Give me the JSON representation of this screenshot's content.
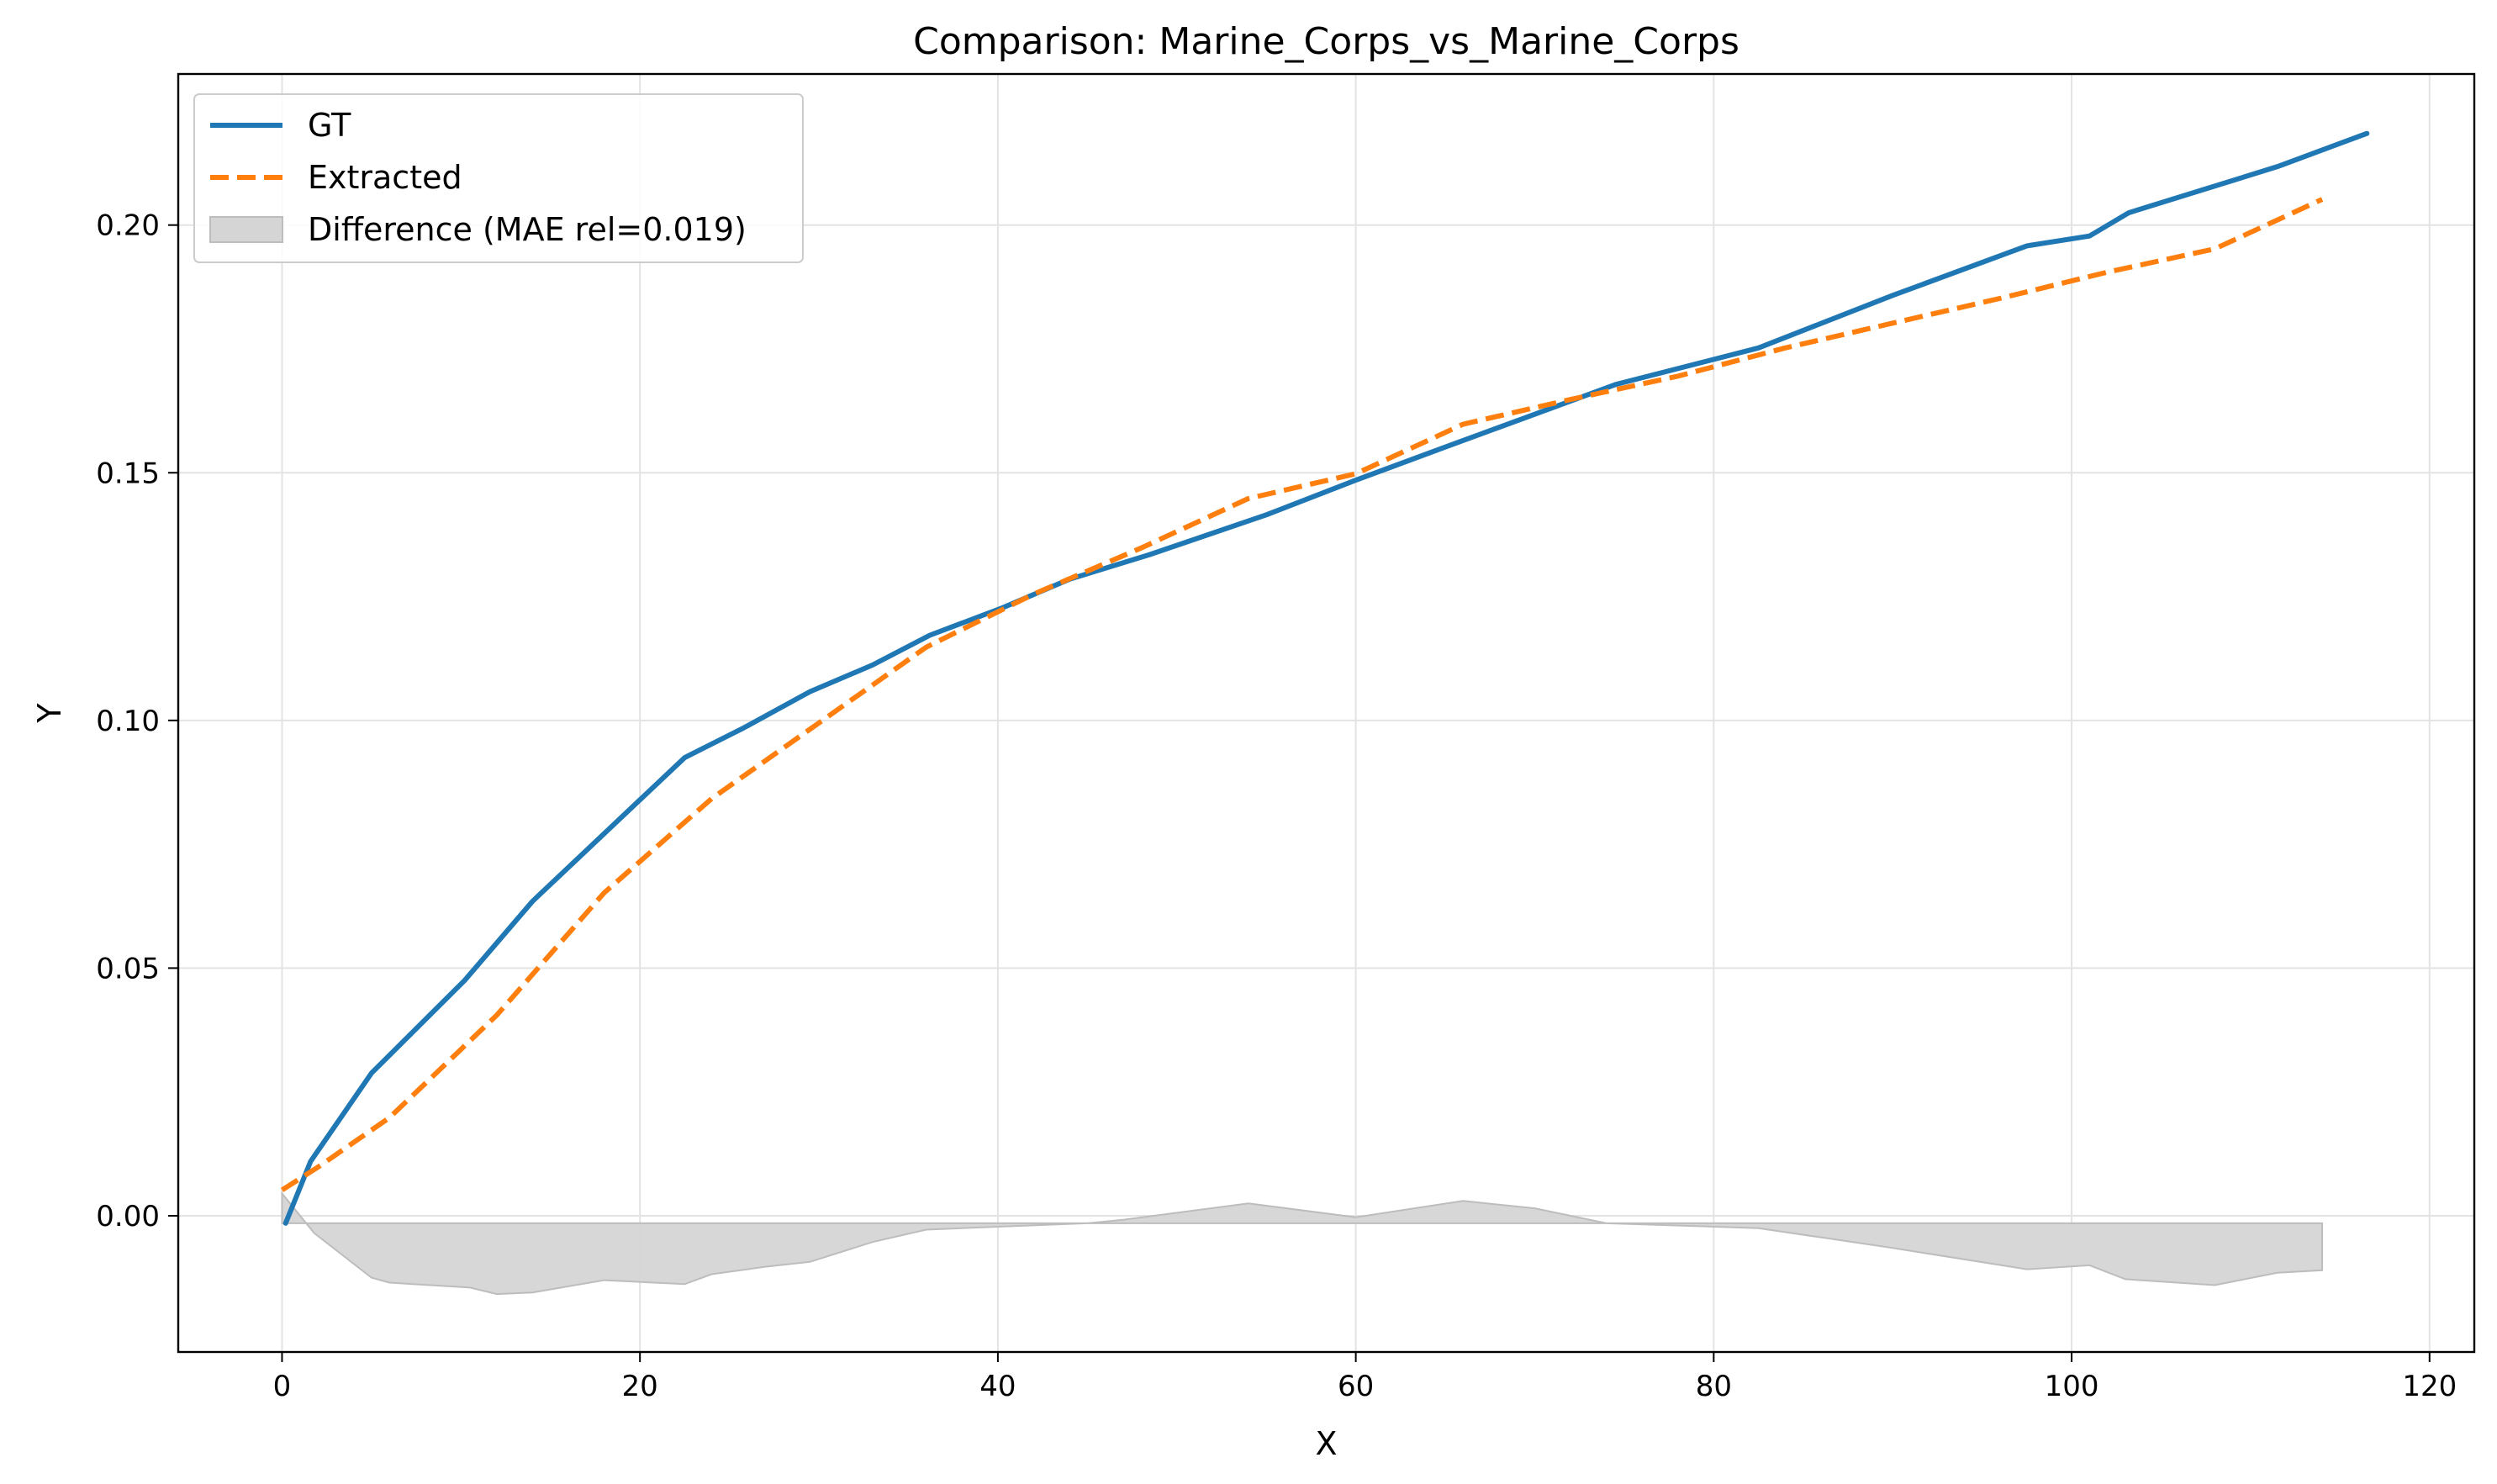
{
  "chart_data": {
    "type": "line",
    "title": "Comparison: Marine_Corps_vs_Marine_Corps",
    "xlabel": "X",
    "ylabel": "Y",
    "xlim": [
      -5.8,
      122.5
    ],
    "ylim": [
      -0.0275,
      0.2305
    ],
    "xticks": [
      0,
      20,
      40,
      60,
      80,
      100,
      120
    ],
    "yticks": [
      0.0,
      0.05,
      0.1,
      0.15,
      0.2
    ],
    "xtick_labels": [
      "0",
      "20",
      "40",
      "60",
      "80",
      "100",
      "120"
    ],
    "ytick_labels": [
      "0.00",
      "0.05",
      "0.10",
      "0.15",
      "0.20"
    ],
    "grid": true,
    "legend_position": "top-left",
    "series": [
      {
        "name": "GT",
        "style": "solid",
        "color": "#1f77b4",
        "x": [
          0.2,
          1.6,
          5.0,
          10.2,
          14.0,
          22.5,
          25.8,
          29.5,
          33.0,
          36.2,
          40.3,
          44.0,
          48.5,
          55.0,
          60.0,
          65.0,
          70.0,
          74.5,
          82.5,
          90.0,
          97.5,
          101.0,
          103.2,
          111.5,
          116.5
        ],
        "y": [
          -0.0015,
          0.011,
          0.0288,
          0.0475,
          0.0635,
          0.0925,
          0.0985,
          0.1058,
          0.1112,
          0.1172,
          0.1228,
          0.1285,
          0.1335,
          0.1415,
          0.1485,
          0.1552,
          0.1618,
          0.1678,
          0.1752,
          0.1858,
          0.1958,
          0.1978,
          0.2025,
          0.2118,
          0.2185
        ]
      },
      {
        "name": "Extracted",
        "style": "dashed",
        "color": "#ff7f0e",
        "x": [
          0.0,
          2.0,
          6.0,
          12.0,
          18.0,
          24.0,
          30.0,
          36.0,
          42.0,
          48.0,
          54.0,
          60.0,
          66.0,
          72.0,
          78.0,
          84.0,
          90.0,
          96.0,
          102.0,
          108.0,
          114.0
        ],
        "y": [
          0.0052,
          0.0098,
          0.0198,
          0.0405,
          0.0652,
          0.0842,
          0.0995,
          0.1148,
          0.1255,
          0.1348,
          0.1448,
          0.1498,
          0.1598,
          0.1648,
          0.1695,
          0.1752,
          0.1802,
          0.1852,
          0.1905,
          0.1952,
          0.2052
        ]
      }
    ],
    "difference": {
      "name": "Difference (MAE rel=0.019)",
      "color": "#d5d5d5",
      "baseline": -0.0015,
      "x": [
        0.0,
        1.8,
        5.0,
        6.0,
        10.5,
        12.0,
        14.0,
        18.0,
        22.5,
        24.0,
        27.0,
        29.5,
        33.0,
        36.0,
        40.0,
        45.0,
        47.0,
        54.0,
        60.0,
        66.0,
        70.0,
        74.0,
        82.5,
        90.0,
        97.5,
        101.0,
        103.0,
        108.0,
        111.5,
        114.0
      ],
      "y": [
        0.0045,
        -0.0035,
        -0.0125,
        -0.0135,
        -0.0145,
        -0.0158,
        -0.0155,
        -0.013,
        -0.0138,
        -0.0118,
        -0.0103,
        -0.0093,
        -0.0053,
        -0.0028,
        -0.0022,
        -0.0015,
        -0.0008,
        0.0025,
        -0.0003,
        0.003,
        0.0015,
        -0.0015,
        -0.0025,
        -0.0065,
        -0.0108,
        -0.01,
        -0.0128,
        -0.014,
        -0.0115,
        -0.011
      ]
    }
  }
}
